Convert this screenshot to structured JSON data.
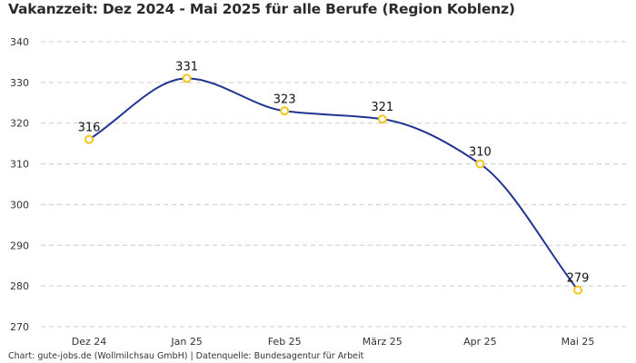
{
  "chart_data": {
    "type": "line",
    "title": "Vakanzzeit: Dez 2024 - Mai 2025 für alle Berufe (Region Koblenz)",
    "xlabel": "",
    "ylabel": "",
    "categories": [
      "Dez 24",
      "Jan 25",
      "Feb 25",
      "März 25",
      "Apr 25",
      "Mai 25"
    ],
    "series": [
      {
        "name": "Vakanzzeit",
        "values": [
          316,
          331,
          323,
          321,
          310,
          279
        ]
      }
    ],
    "data_labels": [
      "316",
      "331",
      "323",
      "321",
      "310",
      "279"
    ],
    "ylim": [
      270,
      340
    ],
    "yticks": [
      340,
      330,
      320,
      310,
      300,
      290,
      280,
      270
    ],
    "ytick_labels": [
      "340",
      "330",
      "320",
      "310",
      "300",
      "290",
      "280",
      "270"
    ],
    "grid": true,
    "legend": "none",
    "colors": {
      "line": "#1f3591",
      "marker": "#f5c518",
      "grid": "#cccccc"
    },
    "footer": "Chart: gute-jobs.de (Wollmilchsau GmbH) | Datenquelle: Bundesagentur für Arbeit"
  }
}
